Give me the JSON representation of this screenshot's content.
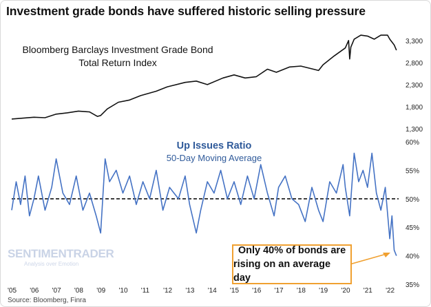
{
  "title": "Investment grade bonds have suffered historic selling pressure",
  "source": "Source: Bloomberg, Finra",
  "logo": {
    "name": "SENTIMENTRADER",
    "tagline": "Analysis over Emotion"
  },
  "annotation": {
    "line1": "Only 40% of bonds are",
    "line2": "rising on an average day"
  },
  "colors": {
    "top_line": "#111111",
    "bottom_line": "#4472c4",
    "callout_border": "#f0a030",
    "subtitle": "#2f5a9a"
  },
  "chart_data": [
    {
      "type": "line",
      "label_line1": "Bloomberg Barclays Investment Grade Bond",
      "label_line2": "Total Return Index",
      "ylim": [
        1300,
        3500
      ],
      "yticks": [
        1300,
        1800,
        2300,
        2800,
        3300
      ],
      "ytick_labels": [
        "1,300",
        "1,800",
        "2,300",
        "2,800",
        "3,300"
      ],
      "series": [
        {
          "x": [
            2005.0,
            2006.0,
            2006.5,
            2007.0,
            2007.5,
            2008.0,
            2008.5,
            2008.85,
            2009.0,
            2009.3,
            2009.8,
            2010.3,
            2010.8,
            2011.5,
            2012.0,
            2012.8,
            2013.3,
            2013.8,
            2014.5,
            2015.0,
            2015.5,
            2016.0,
            2016.5,
            2016.9,
            2017.5,
            2018.0,
            2018.8,
            2019.0,
            2019.5,
            2020.0,
            2020.15,
            2020.2,
            2020.25,
            2020.4,
            2020.7,
            2021.0,
            2021.3,
            2021.6,
            2021.9,
            2022.0,
            2022.2,
            2022.3
          ],
          "values": [
            1520,
            1560,
            1550,
            1630,
            1660,
            1700,
            1680,
            1580,
            1600,
            1750,
            1900,
            1950,
            2050,
            2150,
            2250,
            2350,
            2380,
            2300,
            2450,
            2520,
            2450,
            2480,
            2650,
            2580,
            2700,
            2720,
            2620,
            2750,
            2950,
            3130,
            3300,
            2880,
            3150,
            3330,
            3420,
            3400,
            3330,
            3420,
            3420,
            3330,
            3200,
            3080
          ]
        }
      ]
    },
    {
      "type": "line",
      "title": "Up Issues Ratio",
      "subtitle": "50-Day Moving Average",
      "ylim": [
        35,
        60
      ],
      "yticks": [
        35,
        40,
        45,
        50,
        55,
        60
      ],
      "ytick_labels": [
        "35%",
        "40%",
        "45%",
        "50%",
        "55%",
        "60%"
      ],
      "reference_line": 50,
      "xticks": [
        2005,
        2006,
        2007,
        2008,
        2009,
        2010,
        2011,
        2012,
        2013,
        2014,
        2015,
        2016,
        2017,
        2018,
        2019,
        2020,
        2021,
        2022
      ],
      "xtick_labels": [
        "'05",
        "'06",
        "'07",
        "'08",
        "'09",
        "'10",
        "'11",
        "'12",
        "'13",
        "'14",
        "'15",
        "'16",
        "'17",
        "'18",
        "'19",
        "'20",
        "'21",
        "'22"
      ],
      "series": [
        {
          "x": [
            2005.0,
            2005.2,
            2005.4,
            2005.6,
            2005.8,
            2006.0,
            2006.2,
            2006.5,
            2006.8,
            2007.0,
            2007.3,
            2007.6,
            2007.9,
            2008.2,
            2008.5,
            2008.8,
            2009.0,
            2009.2,
            2009.4,
            2009.7,
            2010.0,
            2010.3,
            2010.6,
            2010.9,
            2011.2,
            2011.5,
            2011.8,
            2012.1,
            2012.5,
            2012.8,
            2013.0,
            2013.3,
            2013.5,
            2013.8,
            2014.1,
            2014.4,
            2014.7,
            2015.0,
            2015.3,
            2015.6,
            2015.9,
            2016.2,
            2016.5,
            2016.8,
            2017.0,
            2017.3,
            2017.6,
            2017.9,
            2018.2,
            2018.5,
            2018.8,
            2019.0,
            2019.3,
            2019.6,
            2019.9,
            2020.0,
            2020.2,
            2020.4,
            2020.6,
            2020.8,
            2021.0,
            2021.2,
            2021.4,
            2021.6,
            2021.8,
            2022.0,
            2022.1,
            2022.2,
            2022.3
          ],
          "values": [
            48,
            53,
            49,
            54,
            47,
            50,
            54,
            48,
            52,
            57,
            51,
            49,
            54,
            48,
            51,
            47,
            44,
            57,
            53,
            55,
            51,
            54,
            49,
            53,
            50,
            55,
            48,
            52,
            50,
            54,
            49,
            44,
            48,
            53,
            51,
            55,
            50,
            53,
            49,
            54,
            50,
            56,
            51,
            47,
            52,
            54,
            50,
            49,
            46,
            52,
            48,
            46,
            53,
            51,
            56,
            52,
            47,
            58,
            53,
            55,
            52,
            58,
            51,
            48,
            52,
            43,
            47,
            41,
            40
          ]
        }
      ]
    }
  ]
}
